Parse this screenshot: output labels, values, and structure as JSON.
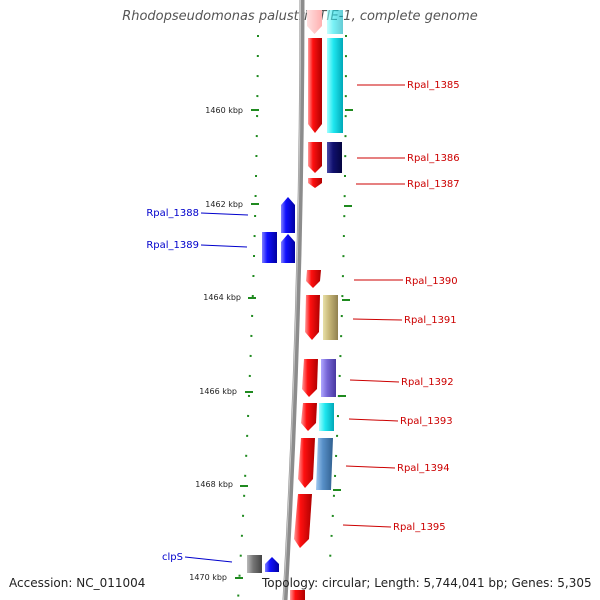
{
  "title": "Rhodopseudomonas palustris TIE-1, complete genome",
  "footer": {
    "accession": "Accession: NC_011004",
    "info": "Topology: circular; Length: 5,744,041 bp; Genes: 5,305"
  },
  "colors": {
    "forward_label": "#cc0000",
    "reverse_label": "#0000cc",
    "backbone": "#8c8c8c",
    "ticks": "#1f8a1f"
  },
  "kbp_ticks": [
    {
      "kbp": 1460,
      "label": "1460 kbp"
    },
    {
      "kbp": 1462,
      "label": "1462 kbp"
    },
    {
      "kbp": 1464,
      "label": "1464 kbp"
    },
    {
      "kbp": 1466,
      "label": "1466 kbp"
    },
    {
      "kbp": 1468,
      "label": "1468 kbp"
    },
    {
      "kbp": 1470,
      "label": "1470 kbp"
    }
  ],
  "genes": [
    {
      "name": "Rpal_1385",
      "strand": "forward"
    },
    {
      "name": "Rpal_1386",
      "strand": "forward"
    },
    {
      "name": "Rpal_1387",
      "strand": "forward"
    },
    {
      "name": "Rpal_1388",
      "strand": "reverse"
    },
    {
      "name": "Rpal_1389",
      "strand": "reverse"
    },
    {
      "name": "Rpal_1390",
      "strand": "forward"
    },
    {
      "name": "Rpal_1391",
      "strand": "forward"
    },
    {
      "name": "Rpal_1392",
      "strand": "forward"
    },
    {
      "name": "Rpal_1393",
      "strand": "forward"
    },
    {
      "name": "Rpal_1394",
      "strand": "forward"
    },
    {
      "name": "Rpal_1395",
      "strand": "forward"
    },
    {
      "name": "clpS",
      "strand": "reverse"
    }
  ]
}
